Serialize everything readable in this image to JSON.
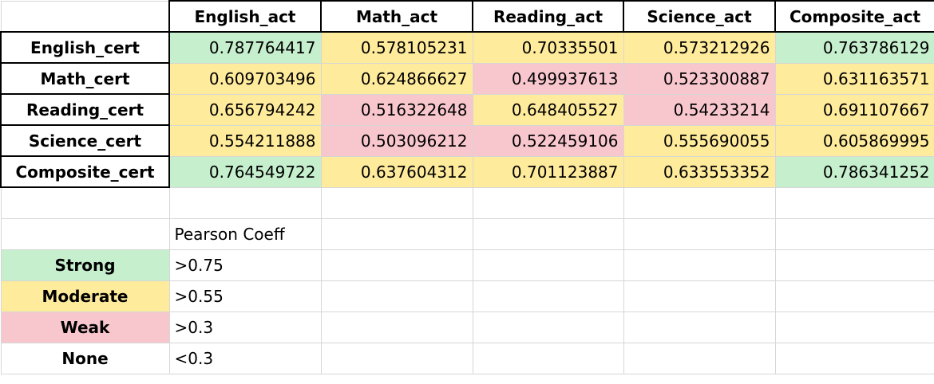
{
  "headers": [
    "English_act",
    "Math_act",
    "Reading_act",
    "Science_act",
    "Composite_act"
  ],
  "rows": [
    {
      "label": "English_cert",
      "cells": [
        {
          "value": "0.787764417",
          "level": "strong"
        },
        {
          "value": "0.578105231",
          "level": "moderate"
        },
        {
          "value": "0.70335501",
          "level": "moderate"
        },
        {
          "value": "0.573212926",
          "level": "moderate"
        },
        {
          "value": "0.763786129",
          "level": "strong"
        }
      ]
    },
    {
      "label": "Math_cert",
      "cells": [
        {
          "value": "0.609703496",
          "level": "moderate"
        },
        {
          "value": "0.624866627",
          "level": "moderate"
        },
        {
          "value": "0.499937613",
          "level": "weak"
        },
        {
          "value": "0.523300887",
          "level": "weak"
        },
        {
          "value": "0.631163571",
          "level": "moderate"
        }
      ]
    },
    {
      "label": "Reading_cert",
      "cells": [
        {
          "value": "0.656794242",
          "level": "moderate"
        },
        {
          "value": "0.516322648",
          "level": "weak"
        },
        {
          "value": "0.648405527",
          "level": "moderate"
        },
        {
          "value": "0.54233214",
          "level": "weak"
        },
        {
          "value": "0.691107667",
          "level": "moderate"
        }
      ]
    },
    {
      "label": "Science_cert",
      "cells": [
        {
          "value": "0.554211888",
          "level": "moderate"
        },
        {
          "value": "0.503096212",
          "level": "weak"
        },
        {
          "value": "0.522459106",
          "level": "weak"
        },
        {
          "value": "0.555690055",
          "level": "moderate"
        },
        {
          "value": "0.605869995",
          "level": "moderate"
        }
      ]
    },
    {
      "label": "Composite_cert",
      "cells": [
        {
          "value": "0.764549722",
          "level": "strong"
        },
        {
          "value": "0.637604312",
          "level": "moderate"
        },
        {
          "value": "0.701123887",
          "level": "moderate"
        },
        {
          "value": "0.633553352",
          "level": "moderate"
        },
        {
          "value": "0.786341252",
          "level": "strong"
        }
      ]
    }
  ],
  "legend": {
    "header": "Pearson Coeff",
    "items": [
      {
        "label": "Strong",
        "threshold": ">0.75"
      },
      {
        "label": "Moderate",
        "threshold": ">0.55"
      },
      {
        "label": "Weak",
        "threshold": ">0.3"
      },
      {
        "label": "None",
        "threshold": "<0.3"
      }
    ]
  },
  "colors": {
    "strong_fill": "#c6efce",
    "strong_text": "#1d6b1f",
    "moderate_fill": "#ffeb9c",
    "moderate_text": "#8a5a00",
    "weak_fill": "#f8c7ce",
    "weak_text": "#9c0006"
  }
}
